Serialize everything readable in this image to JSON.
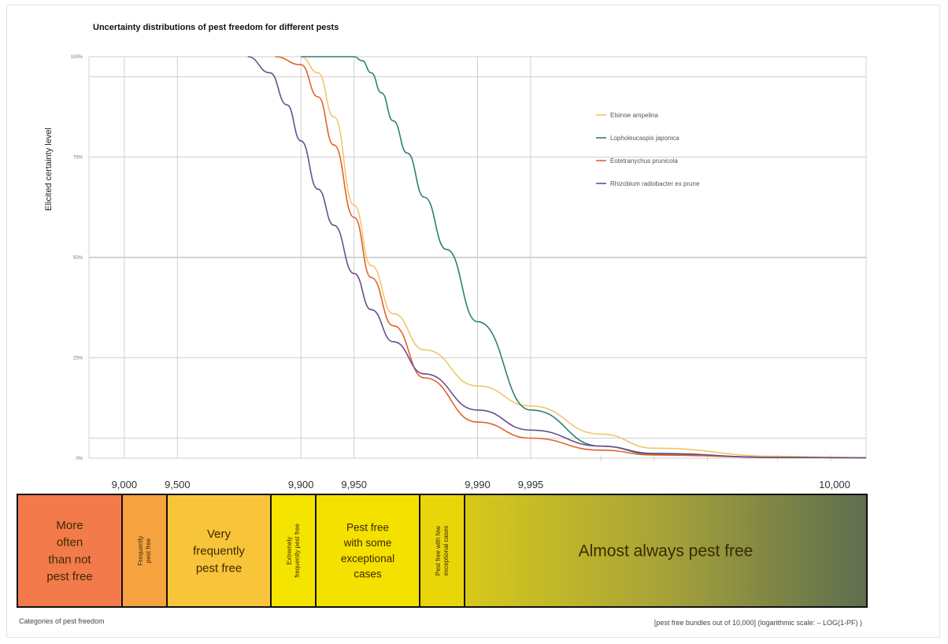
{
  "chart_data": {
    "type": "line",
    "title": "Uncertainty distributions of pest freedom for different pests",
    "ylabel": "Elicited certainty level",
    "ylim": [
      0,
      100
    ],
    "y_ticks": [
      "0%",
      "25%",
      "50%",
      "75%",
      "100%"
    ],
    "x_scale": "log(1-PF)",
    "x_tick_labels": [
      "9,000",
      "9,500",
      "9,900",
      "9,950",
      "9,990",
      "9,995",
      "10,000"
    ],
    "legend_position": "top-right",
    "series": [
      {
        "name": "Elsinoe ampelina",
        "color": "#f2c56b",
        "x": [
          9900,
          9920,
          9935,
          9950,
          9960,
          9970,
          9980,
          9990,
          9995,
          9998,
          9999,
          9999.8
        ],
        "y": [
          100,
          96,
          85,
          63,
          48,
          36,
          27,
          18,
          13,
          6,
          2.5,
          0.5
        ]
      },
      {
        "name": "Lopholeucaspis japonica",
        "color": "#2f7f78",
        "x": [
          9900,
          9950,
          9955,
          9960,
          9965,
          9970,
          9975,
          9980,
          9985,
          9990,
          9995,
          9998,
          9999,
          9999.8
        ],
        "y": [
          100,
          100,
          99,
          96,
          91,
          84,
          76,
          65,
          52,
          34,
          12,
          3,
          1,
          0.2
        ]
      },
      {
        "name": "Eotetranychus prunicola",
        "color": "#e0622c",
        "x": [
          9860,
          9900,
          9920,
          9935,
          9950,
          9960,
          9970,
          9980,
          9990,
          9995,
          9998,
          9999,
          9999.8
        ],
        "y": [
          100,
          98,
          90,
          78,
          60,
          45,
          33,
          20,
          9,
          5,
          2,
          0.8,
          0.2
        ]
      },
      {
        "name": "Rhizobium radiobacter ex prune",
        "color": "#6a4e8c",
        "x": [
          9800,
          9850,
          9880,
          9900,
          9920,
          9935,
          9950,
          9960,
          9970,
          9980,
          9990,
          9995,
          9998,
          9999,
          9999.8
        ],
        "y": [
          100,
          96,
          88,
          79,
          67,
          58,
          46,
          37,
          29,
          21,
          12,
          7,
          3,
          1.2,
          0.2
        ]
      }
    ]
  },
  "categories": [
    {
      "label": "More often than not pest free",
      "lines": [
        "More",
        "often",
        "than not",
        "pest free"
      ],
      "color": "#f37a4a",
      "vertical": false
    },
    {
      "label": "Frequently pest free",
      "lines": [
        "Frequently",
        "pest free"
      ],
      "color": "#f6a23f",
      "vertical": true
    },
    {
      "label": "Very frequently pest free",
      "lines": [
        "Very",
        "frequently",
        "pest free"
      ],
      "color": "#f8c43a",
      "vertical": false
    },
    {
      "label": "Extremely frequently pest free",
      "lines": [
        "Extremely",
        "frequently pest free"
      ],
      "color": "#f5e300",
      "vertical": true
    },
    {
      "label": "Pest free with some exceptional cases",
      "lines": [
        "Pest free",
        "with some",
        "exceptional",
        "cases"
      ],
      "color": "#f5e100",
      "vertical": false
    },
    {
      "label": "Pest free with few exceptional cases",
      "lines": [
        "Pest free with few",
        "exceptional cases"
      ],
      "color": "#e9d60a",
      "vertical": true
    },
    {
      "label": "Almost always pest free",
      "lines": [
        "Almost always pest free"
      ],
      "color": "gradient",
      "vertical": false
    }
  ],
  "footer": {
    "left": "Categories of pest freedom",
    "right": "[pest free bundles out of 10,000] (logarithmic scale: – LOG(1-PF) )"
  }
}
